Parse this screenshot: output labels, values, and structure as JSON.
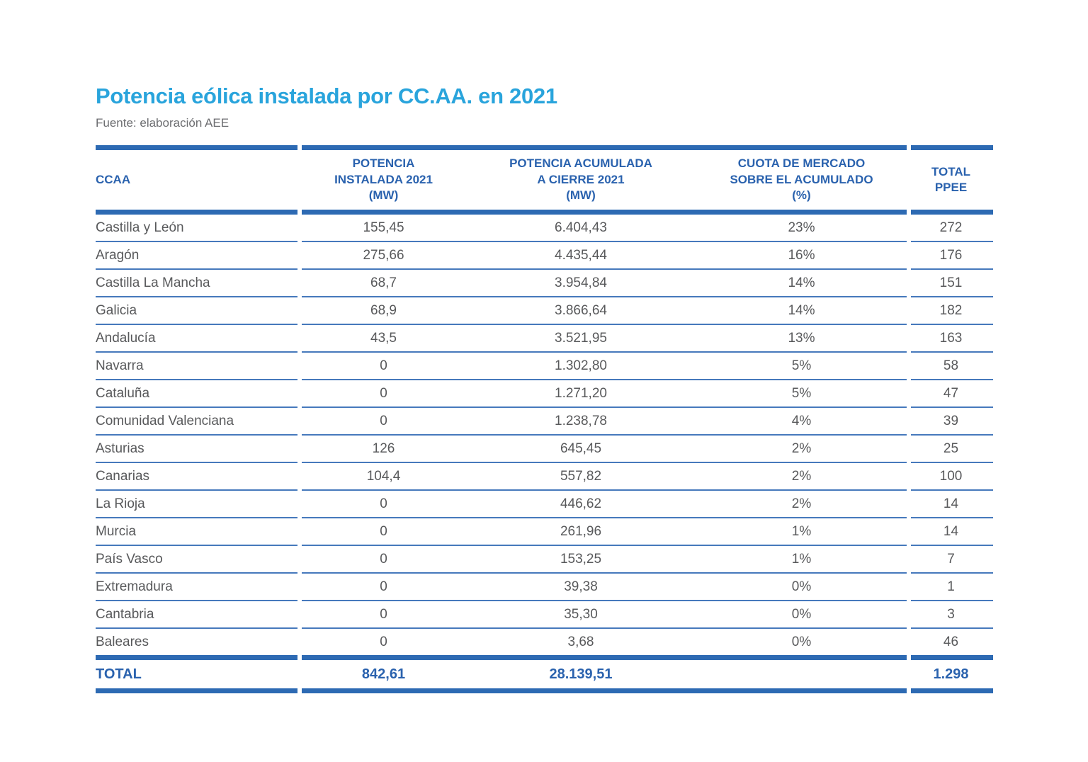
{
  "title": "Potencia eólica instalada por CC.AA. en 2021",
  "source": "Fuente: elaboración AEE",
  "colors": {
    "title_accent": "#29A4DC",
    "header_text": "#2A62AE",
    "body_text": "#58595B",
    "rule_thick": "#2D6AB3",
    "rule_thin": "#4679BC",
    "source_text": "#6D6E71"
  },
  "table": {
    "columns": [
      {
        "id": "ccaa",
        "label": "CCAA"
      },
      {
        "id": "instalada",
        "label": "POTENCIA\nINSTALADA 2021\n(MW)"
      },
      {
        "id": "acumulada",
        "label": "POTENCIA ACUMULADA\nA CIERRE 2021\n(MW)"
      },
      {
        "id": "cuota",
        "label": "CUOTA DE MERCADO\nSOBRE EL ACUMULADO\n(%)"
      },
      {
        "id": "ppee",
        "label": "TOTAL\nPPEE"
      }
    ],
    "rows": [
      {
        "ccaa": "Castilla y León",
        "instalada": "155,45",
        "acumulada": "6.404,43",
        "cuota": "23%",
        "ppee": "272"
      },
      {
        "ccaa": "Aragón",
        "instalada": "275,66",
        "acumulada": "4.435,44",
        "cuota": "16%",
        "ppee": "176"
      },
      {
        "ccaa": "Castilla La Mancha",
        "instalada": "68,7",
        "acumulada": "3.954,84",
        "cuota": "14%",
        "ppee": "151"
      },
      {
        "ccaa": "Galicia",
        "instalada": "68,9",
        "acumulada": "3.866,64",
        "cuota": "14%",
        "ppee": "182"
      },
      {
        "ccaa": "Andalucía",
        "instalada": "43,5",
        "acumulada": "3.521,95",
        "cuota": "13%",
        "ppee": "163"
      },
      {
        "ccaa": "Navarra",
        "instalada": "0",
        "acumulada": "1.302,80",
        "cuota": "5%",
        "ppee": "58"
      },
      {
        "ccaa": "Cataluña",
        "instalada": "0",
        "acumulada": "1.271,20",
        "cuota": "5%",
        "ppee": "47"
      },
      {
        "ccaa": "Comunidad Valenciana",
        "instalada": "0",
        "acumulada": "1.238,78",
        "cuota": "4%",
        "ppee": "39"
      },
      {
        "ccaa": "Asturias",
        "instalada": "126",
        "acumulada": "645,45",
        "cuota": "2%",
        "ppee": "25"
      },
      {
        "ccaa": "Canarias",
        "instalada": "104,4",
        "acumulada": "557,82",
        "cuota": "2%",
        "ppee": "100"
      },
      {
        "ccaa": "La Rioja",
        "instalada": "0",
        "acumulada": "446,62",
        "cuota": "2%",
        "ppee": "14"
      },
      {
        "ccaa": "Murcia",
        "instalada": "0",
        "acumulada": "261,96",
        "cuota": "1%",
        "ppee": "14"
      },
      {
        "ccaa": "País Vasco",
        "instalada": "0",
        "acumulada": "153,25",
        "cuota": "1%",
        "ppee": "7"
      },
      {
        "ccaa": "Extremadura",
        "instalada": "0",
        "acumulada": "39,38",
        "cuota": "0%",
        "ppee": "1"
      },
      {
        "ccaa": "Cantabria",
        "instalada": "0",
        "acumulada": "35,30",
        "cuota": "0%",
        "ppee": "3"
      },
      {
        "ccaa": "Baleares",
        "instalada": "0",
        "acumulada": "3,68",
        "cuota": "0%",
        "ppee": "46"
      }
    ],
    "total": {
      "ccaa": "TOTAL",
      "instalada": "842,61",
      "acumulada": "28.139,51",
      "cuota": "",
      "ppee": "1.298"
    }
  }
}
